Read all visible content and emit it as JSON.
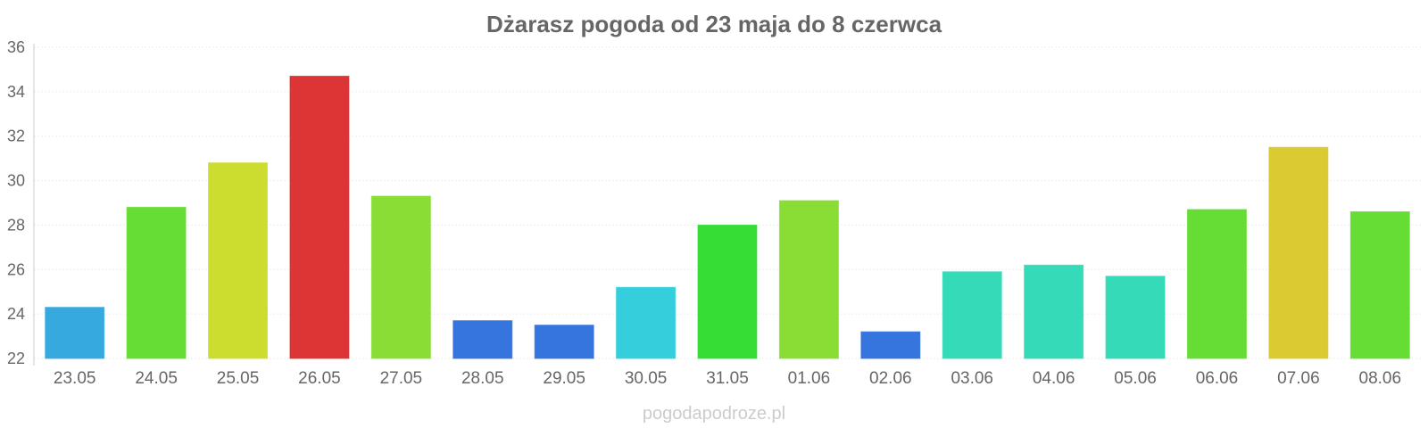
{
  "chart_data": {
    "type": "bar",
    "title": "Dżarasz pogoda od 23 maja do 8 czerwca",
    "xlabel": "",
    "ylabel": "",
    "categories": [
      "23.05",
      "24.05",
      "25.05",
      "26.05",
      "27.05",
      "28.05",
      "29.05",
      "30.05",
      "31.05",
      "01.06",
      "02.06",
      "03.06",
      "04.06",
      "05.06",
      "06.06",
      "07.06",
      "08.06"
    ],
    "values": [
      24.3,
      28.8,
      30.8,
      34.7,
      29.3,
      23.7,
      23.5,
      25.2,
      28.0,
      29.1,
      23.2,
      25.9,
      26.2,
      25.7,
      28.7,
      31.5,
      28.6
    ],
    "colors": [
      "#36a9de",
      "#66dd35",
      "#cddd30",
      "#dd3535",
      "#89dd35",
      "#3575dd",
      "#3575dd",
      "#35cedd",
      "#35dd35",
      "#89dd35",
      "#3575dd",
      "#35dbb9",
      "#35dbb9",
      "#35dbb9",
      "#66dd35",
      "#dbca32",
      "#66dd35"
    ],
    "ylim": [
      22,
      36
    ],
    "yticks": [
      22,
      24,
      26,
      28,
      30,
      32,
      34,
      36
    ],
    "grid": true,
    "legend": "none"
  },
  "watermark": "pogodapodroze.pl"
}
